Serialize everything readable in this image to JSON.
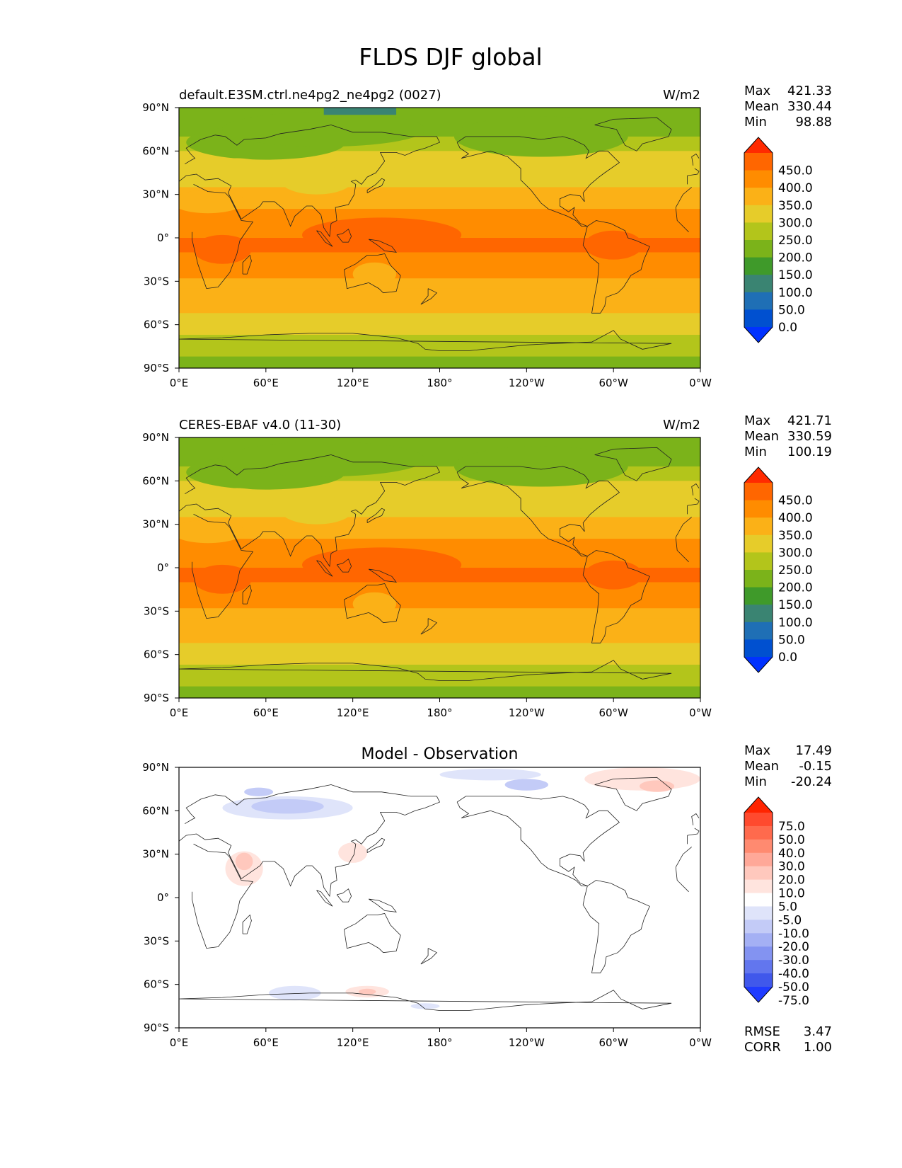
{
  "figure": {
    "title": "FLDS DJF global"
  },
  "chart_data": [
    {
      "type": "heatmap",
      "name": "test",
      "title_left": "default.E3SM.ctrl.ne4pg2_ne4pg2 (0027)",
      "title_center": "",
      "units": "W/m2",
      "stats": {
        "labels": [
          "Max",
          "Mean",
          "Min"
        ],
        "values": [
          "421.33",
          "330.44",
          "98.88"
        ]
      },
      "colorbar": {
        "labels": [
          "450.0",
          "400.0",
          "350.0",
          "300.0",
          "250.0",
          "200.0",
          "150.0",
          "100.0",
          "50.0",
          "0.0"
        ],
        "colors": [
          "#ff2a00",
          "#ff6600",
          "#ff8c00",
          "#fbb117",
          "#e6cc2a",
          "#b3c51b",
          "#7bb31a",
          "#3f9a2a",
          "#3a8472",
          "#1f6fb5",
          "#0050d0",
          "#0032ff"
        ],
        "extend": "both"
      },
      "lon_ticks": [
        "0°E",
        "60°E",
        "120°E",
        "180°",
        "120°W",
        "60°W",
        "0°W"
      ],
      "lat_ticks": [
        "90°N",
        "60°N",
        "30°N",
        "0°",
        "30°S",
        "60°S",
        "90°S"
      ],
      "field_summary": "zonal bands: ~170 W/m2 polar, ~280 midlatitude, ~400 tropical warm pool"
    },
    {
      "type": "heatmap",
      "name": "reference",
      "title_left": "CERES-EBAF v4.0 (11-30)",
      "title_center": "",
      "units": "W/m2",
      "stats": {
        "labels": [
          "Max",
          "Mean",
          "Min"
        ],
        "values": [
          "421.71",
          "330.59",
          "100.19"
        ]
      },
      "colorbar": {
        "labels": [
          "450.0",
          "400.0",
          "350.0",
          "300.0",
          "250.0",
          "200.0",
          "150.0",
          "100.0",
          "50.0",
          "0.0"
        ],
        "colors": [
          "#ff2a00",
          "#ff6600",
          "#ff8c00",
          "#fbb117",
          "#e6cc2a",
          "#b3c51b",
          "#7bb31a",
          "#3f9a2a",
          "#3a8472",
          "#1f6fb5",
          "#0050d0",
          "#0032ff"
        ],
        "extend": "both"
      },
      "lon_ticks": [
        "0°E",
        "60°E",
        "120°E",
        "180°",
        "120°W",
        "60°W",
        "0°W"
      ],
      "lat_ticks": [
        "90°N",
        "60°N",
        "30°N",
        "0°",
        "30°S",
        "60°S",
        "90°S"
      ]
    },
    {
      "type": "heatmap",
      "name": "difference",
      "title_left": "",
      "title_center": "Model - Observation",
      "units": "",
      "stats": {
        "labels": [
          "Max",
          "Mean",
          "Min"
        ],
        "values": [
          "17.49",
          "-0.15",
          "-20.24"
        ]
      },
      "colorbar": {
        "labels": [
          "75.0",
          "50.0",
          "40.0",
          "30.0",
          "20.0",
          "10.0",
          "5.0",
          "-5.0",
          "-10.0",
          "-20.0",
          "-30.0",
          "-40.0",
          "-50.0",
          "-75.0"
        ],
        "colors": [
          "#ff2400",
          "#ff4a2e",
          "#ff6a4d",
          "#ff8a70",
          "#ffa898",
          "#ffc8bd",
          "#ffe4de",
          "#ffffff",
          "#dfe4fa",
          "#c3cbf7",
          "#a4b0f4",
          "#8393f1",
          "#6276ee",
          "#4058eb",
          "#1f3bff"
        ],
        "extend": "both"
      },
      "lon_ticks": [
        "0°E",
        "60°E",
        "120°E",
        "180°",
        "120°W",
        "60°W",
        "0°W"
      ],
      "lat_ticks": [
        "90°N",
        "60°N",
        "30°N",
        "0°",
        "30°S",
        "60°S",
        "90°S"
      ],
      "metrics": {
        "labels": [
          "RMSE",
          "CORR"
        ],
        "values": [
          "3.47",
          "1.00"
        ]
      }
    }
  ]
}
